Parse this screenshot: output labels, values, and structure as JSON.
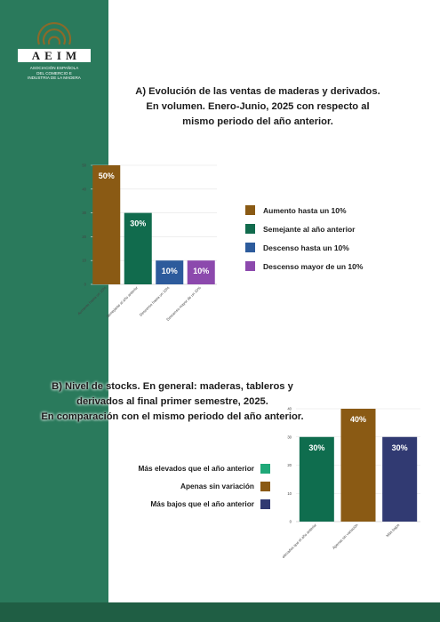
{
  "brand": {
    "logo_text": "AEIM",
    "subtitle_lines": [
      "Asociación Española",
      "del Comercio e",
      "Industria de la Madera"
    ],
    "band_color": "#2a7a5c",
    "footer_color": "#1f5e44"
  },
  "chart_data": [
    {
      "type": "bar",
      "title": "A) Evolución de las ventas de maderas y derivados. En volumen. Enero-Junio, 2025 con respecto al mismo periodo del año anterior.",
      "title_lines": [
        "A) Evolución de las ventas de maderas y derivados.",
        "En volumen. Enero-Junio, 2025 con respecto al",
        "mismo periodo del año anterior."
      ],
      "categories": [
        "Aumento hasta un 10%",
        "Semejante al año anterior",
        "Descenso hasta un 10%",
        "Descenso mayor de un 10%"
      ],
      "values": [
        50,
        30,
        10,
        10
      ],
      "value_labels": [
        "50%",
        "30%",
        "10%",
        "10%"
      ],
      "colors": [
        "#8a5a14",
        "#116b4d",
        "#2d5b9c",
        "#8c49ad"
      ],
      "ylim": [
        0,
        50
      ],
      "yticks": [
        "0",
        "10",
        "20",
        "30",
        "40",
        "50"
      ],
      "legend_position": "right",
      "grid": true
    },
    {
      "type": "bar",
      "title": "B) Nivel de stocks. En general: maderas, tableros y derivados al final primer semestre, 2025. En comparación con el mismo periodo del año anterior.",
      "title_lines": [
        "B) Nivel de stocks. En general: maderas, tableros y",
        "derivados al final primer semestre, 2025.",
        "En comparación con el mismo periodo del año anterior."
      ],
      "categories": [
        "Más elevados que el año anterior",
        "Apenas sin variación",
        "Más bajos"
      ],
      "legend_labels": [
        "Más elevados que el año anterior",
        "Apenas sin variación",
        "Más bajos que el año anterior"
      ],
      "values": [
        30,
        40,
        30
      ],
      "value_labels": [
        "30%",
        "40%",
        "30%"
      ],
      "colors": [
        "#0f6d4e",
        "#8a5a14",
        "#313a72"
      ],
      "legend_colors": [
        "#1fa878",
        "#8a5a14",
        "#313a72"
      ],
      "ylim": [
        0,
        40
      ],
      "yticks": [
        "0",
        "10",
        "20",
        "30",
        "40"
      ],
      "legend_position": "left",
      "grid": true
    }
  ]
}
